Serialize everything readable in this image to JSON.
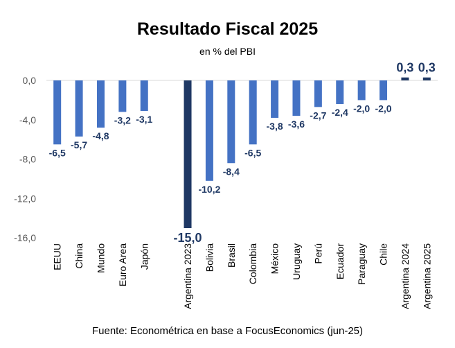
{
  "chart_data": {
    "type": "bar",
    "title": "Resultado Fiscal 2025",
    "subtitle": "en % del PBI",
    "source": "Fuente: Econométrica en base a FocusEconomics (jun-25)",
    "xlabel": "",
    "ylabel": "",
    "ylim": [
      -16,
      0
    ],
    "yticks": [
      0,
      -4,
      -8,
      -12,
      -16
    ],
    "ytick_labels": [
      "0,0",
      "-4,0",
      "-8,0",
      "-12,0",
      "-16,0"
    ],
    "grid": false,
    "categories": [
      "EEUU",
      "China",
      "Mundo",
      "Euro Area",
      "Japón",
      "",
      "Argentina 2023",
      "Bolivia",
      "Brasil",
      "Colombia",
      "México",
      "Uruguay",
      "Perú",
      "Ecuador",
      "Paraguay",
      "Chile",
      "Argentina 2024",
      "Argentina 2025"
    ],
    "values": [
      -6.5,
      -5.7,
      -4.8,
      -3.2,
      -3.1,
      null,
      -15.0,
      -10.2,
      -8.4,
      -6.5,
      -3.8,
      -3.6,
      -2.7,
      -2.4,
      -2.0,
      -2.0,
      0.3,
      0.3
    ],
    "value_labels": [
      "-6,5",
      "-5,7",
      "-4,8",
      "-3,2",
      "-3,1",
      "",
      "-15,0",
      "-10,2",
      "-8,4",
      "-6,5",
      "-3,8",
      "-3,6",
      "-2,7",
      "-2,4",
      "-2,0",
      "-2,0",
      "0,3",
      "0,3"
    ],
    "highlight": [
      false,
      false,
      false,
      false,
      false,
      false,
      true,
      false,
      false,
      false,
      false,
      false,
      false,
      false,
      false,
      false,
      true,
      true
    ],
    "colors": {
      "bar": "#4472C4",
      "highlight": "#1F3864",
      "label": "#1F3864",
      "axis_text": "#595959",
      "axis_line": "#D9D9D9"
    }
  }
}
